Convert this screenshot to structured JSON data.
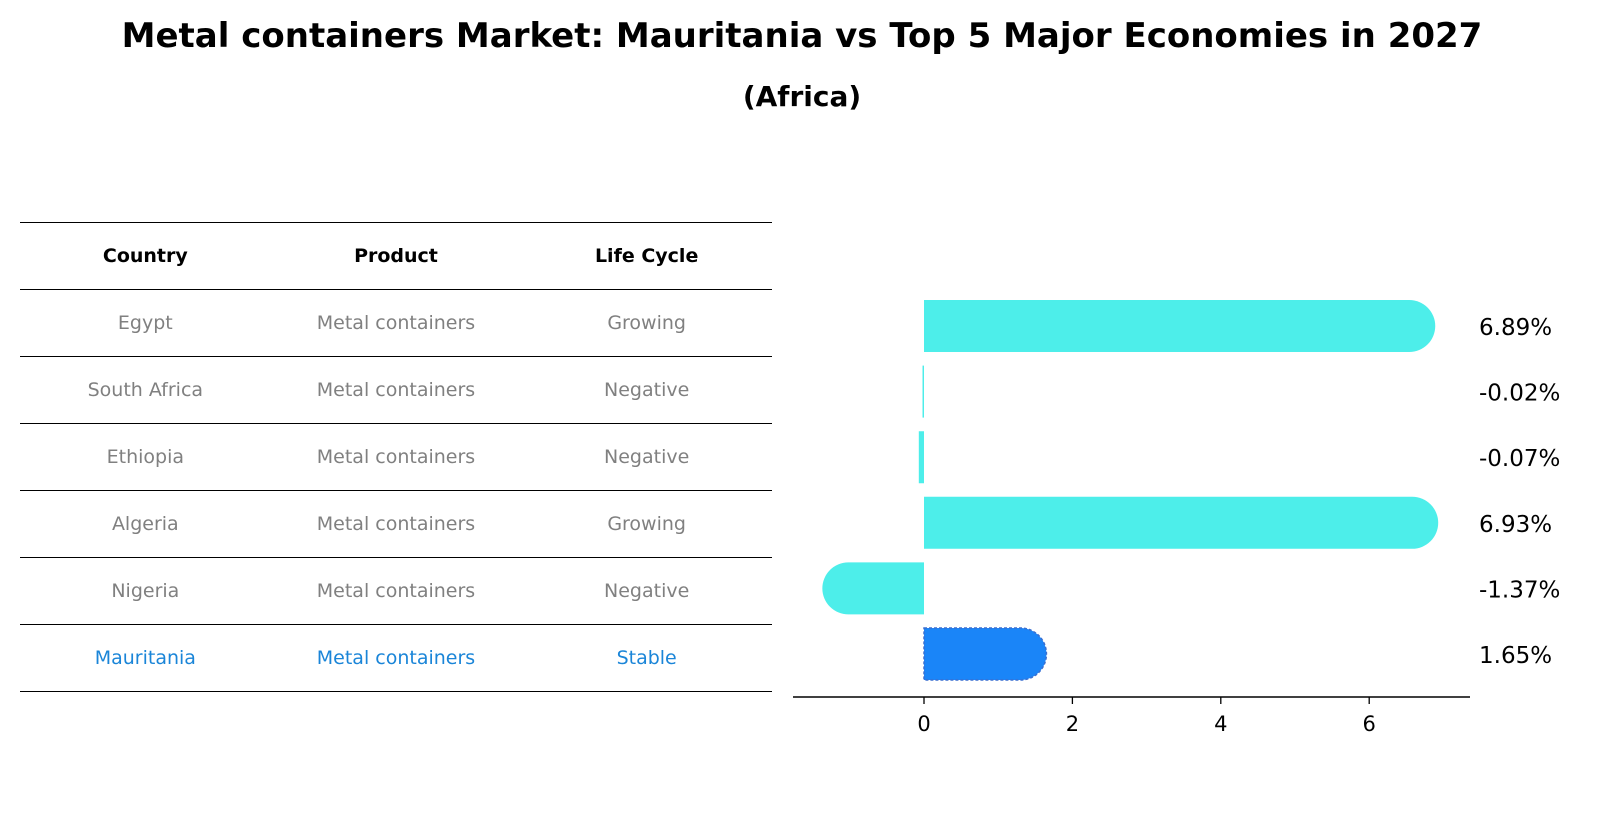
{
  "title": "Metal containers Market: Mauritania vs Top 5 Major Economies in 2027",
  "subtitle": "(Africa)",
  "table": {
    "headers": [
      "Country",
      "Product",
      "Life Cycle"
    ],
    "rows": [
      {
        "country": "Egypt",
        "product": "Metal containers",
        "life_cycle": "Growing"
      },
      {
        "country": "South Africa",
        "product": "Metal containers",
        "life_cycle": "Negative"
      },
      {
        "country": "Ethiopia",
        "product": "Metal containers",
        "life_cycle": "Negative"
      },
      {
        "country": "Algeria",
        "product": "Metal containers",
        "life_cycle": "Growing"
      },
      {
        "country": "Nigeria",
        "product": "Metal containers",
        "life_cycle": "Negative"
      },
      {
        "country": "Mauritania",
        "product": "Metal containers",
        "life_cycle": "Stable"
      }
    ],
    "highlight_row": "Mauritania"
  },
  "colors": {
    "bar": "#4deeea",
    "highlight_bar": "#1a85f8",
    "highlight_text": "#1a85d8",
    "muted_text": "#808080"
  },
  "chart_data": {
    "type": "bar",
    "orientation": "horizontal",
    "categories": [
      "Egypt",
      "South Africa",
      "Ethiopia",
      "Algeria",
      "Nigeria",
      "Mauritania"
    ],
    "values": [
      6.89,
      -0.02,
      -0.07,
      6.93,
      -1.37,
      1.65
    ],
    "labels": [
      "6.89%",
      "-0.02%",
      "-0.07%",
      "6.93%",
      "-1.37%",
      "1.65%"
    ],
    "xlim": [
      -1.8,
      7.4
    ],
    "xticks": [
      0,
      2,
      4,
      6
    ],
    "highlight": "Mauritania",
    "grid": false
  }
}
